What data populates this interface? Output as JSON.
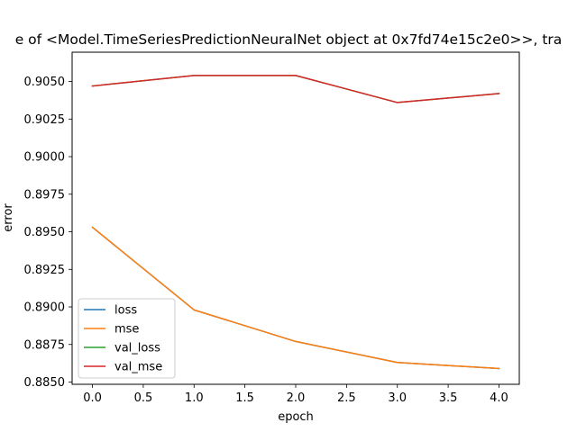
{
  "chart_data": {
    "type": "line",
    "title": "e of <Model.TimeSeriesPredictionNeuralNet object at 0x7fd74e15c2e0>>, tra",
    "xlabel": "epoch",
    "ylabel": "error",
    "x": [
      0,
      1,
      2,
      3,
      4
    ],
    "xlim": [
      -0.2,
      4.2
    ],
    "ylim": [
      0.88485,
      0.90695
    ],
    "xticks": [
      0.0,
      0.5,
      1.0,
      1.5,
      2.0,
      2.5,
      3.0,
      3.5,
      4.0
    ],
    "xtick_labels": [
      "0.0",
      "0.5",
      "1.0",
      "1.5",
      "2.0",
      "2.5",
      "3.0",
      "3.5",
      "4.0"
    ],
    "yticks": [
      0.885,
      0.8875,
      0.89,
      0.8925,
      0.895,
      0.8975,
      0.9,
      0.9025,
      0.905
    ],
    "ytick_labels": [
      "0.8850",
      "0.8875",
      "0.8900",
      "0.8925",
      "0.8950",
      "0.8975",
      "0.9000",
      "0.9025",
      "0.9050"
    ],
    "grid": false,
    "legend_position": "lower-left",
    "series": [
      {
        "name": "loss",
        "color": "#1f77b4",
        "values": [
          0.8953,
          0.8898,
          0.8877,
          0.8863,
          0.8859
        ]
      },
      {
        "name": "mse",
        "color": "#ff7f0e",
        "values": [
          0.8953,
          0.8898,
          0.8877,
          0.8863,
          0.8859
        ]
      },
      {
        "name": "val_loss",
        "color": "#2ca02c",
        "values": [
          0.9047,
          0.9054,
          0.9054,
          0.9036,
          0.9042
        ]
      },
      {
        "name": "val_mse",
        "color": "#d62728",
        "values": [
          0.9047,
          0.9054,
          0.9054,
          0.9036,
          0.9042
        ]
      }
    ]
  }
}
